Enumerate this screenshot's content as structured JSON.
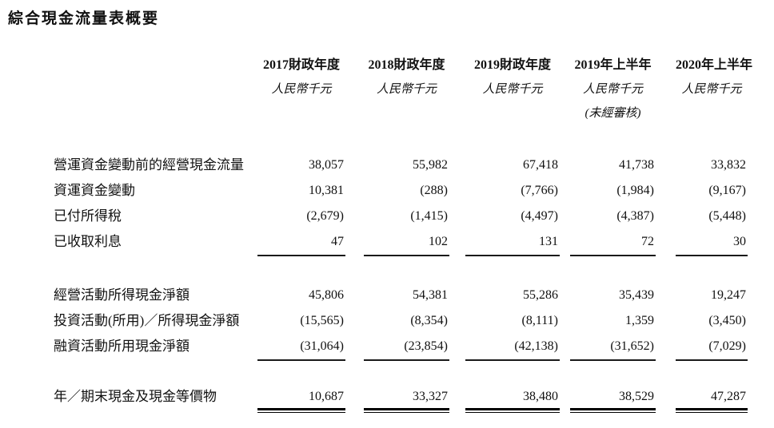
{
  "title": "綜合現金流量表概要",
  "table": {
    "columns": [
      {
        "year": "2017財政年度",
        "unit": "人民幣千元",
        "note": ""
      },
      {
        "year": "2018財政年度",
        "unit": "人民幣千元",
        "note": ""
      },
      {
        "year": "2019財政年度",
        "unit": "人民幣千元",
        "note": ""
      },
      {
        "year": "2019年上半年",
        "unit": "人民幣千元",
        "note": "(未經審核)"
      },
      {
        "year": "2020年上半年",
        "unit": "人民幣千元",
        "note": ""
      }
    ],
    "sections": [
      {
        "rows": [
          {
            "label": "營運資金變動前的經營現金流量",
            "values": [
              "38,057",
              "55,982",
              "67,418",
              "41,738",
              "33,832"
            ]
          },
          {
            "label": "資運資金變動",
            "values": [
              "10,381",
              "(288)",
              "(7,766)",
              "(1,984)",
              "(9,167)"
            ]
          },
          {
            "label": "已付所得稅",
            "values": [
              "(2,679)",
              "(1,415)",
              "(4,497)",
              "(4,387)",
              "(5,448)"
            ]
          },
          {
            "label": "已收取利息",
            "values": [
              "47",
              "102",
              "131",
              "72",
              "30"
            ]
          }
        ]
      },
      {
        "rows": [
          {
            "label": "經營活動所得現金淨額",
            "values": [
              "45,806",
              "54,381",
              "55,286",
              "35,439",
              "19,247"
            ]
          },
          {
            "label": "投資活動(所用)／所得現金淨額",
            "values": [
              "(15,565)",
              "(8,354)",
              "(8,111)",
              "1,359",
              "(3,450)"
            ]
          },
          {
            "label": "融資活動所用現金淨額",
            "values": [
              "(31,064)",
              "(23,854)",
              "(42,138)",
              "(31,652)",
              "(7,029)"
            ]
          }
        ]
      },
      {
        "rows": [
          {
            "label": "年／期末現金及現金等價物",
            "values": [
              "10,687",
              "33,327",
              "38,480",
              "38,529",
              "47,287"
            ]
          }
        ]
      }
    ]
  }
}
